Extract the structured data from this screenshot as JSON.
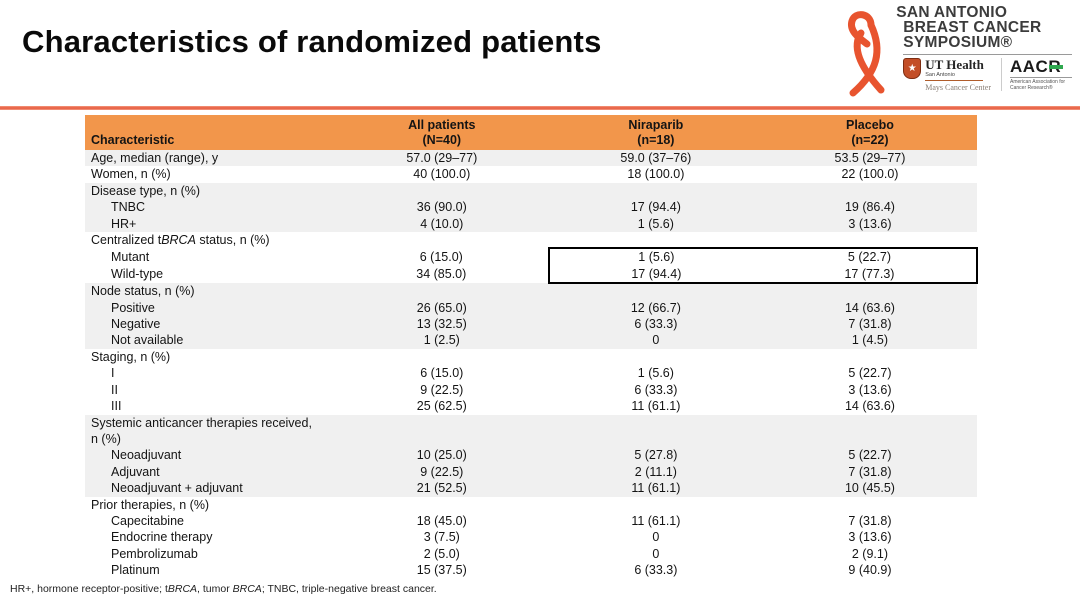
{
  "slide": {
    "title": "Characteristics of randomized patients"
  },
  "logo": {
    "symposium_line1": "SAN ANTONIO",
    "symposium_line2": "BREAST CANCER",
    "symposium_line3": "SYMPOSIUM®",
    "ut_health": {
      "name": "UT Health",
      "location": "San Antonio",
      "center": "Mays Cancer Center"
    },
    "aacr": {
      "acronym": "AACR",
      "subtitle": "American Association for Cancer Research®"
    }
  },
  "table": {
    "columns": [
      {
        "label": "Characteristic"
      },
      {
        "line1": "All patients",
        "line2": "(N=40)"
      },
      {
        "line1": "Niraparib",
        "line2": "(n=18)"
      },
      {
        "line1": "Placebo",
        "line2": "(n=22)"
      }
    ],
    "rows": [
      {
        "label": "Age, median (range), y",
        "indent": 0,
        "band": "gray",
        "values": [
          "57.0 (29–77)",
          "59.0 (37–76)",
          "53.5 (29–77)"
        ]
      },
      {
        "label": "Women, n (%)",
        "indent": 0,
        "band": "white",
        "values": [
          "40 (100.0)",
          "18 (100.0)",
          "22 (100.0)"
        ]
      },
      {
        "label": "Disease type, n (%)",
        "indent": 0,
        "band": "gray",
        "values": [
          "",
          "",
          ""
        ]
      },
      {
        "label": "TNBC",
        "indent": 1,
        "band": "gray",
        "values": [
          "36 (90.0)",
          "17 (94.4)",
          "19 (86.4)"
        ]
      },
      {
        "label": "HR+",
        "indent": 1,
        "band": "gray",
        "values": [
          "4 (10.0)",
          "1 (5.6)",
          "3 (13.6)"
        ]
      },
      {
        "label_segments": [
          {
            "t": "Centralized t"
          },
          {
            "t": "BRCA",
            "i": true
          },
          {
            "t": " status, n (%)"
          }
        ],
        "indent": 0,
        "band": "white",
        "values": [
          "",
          "",
          ""
        ]
      },
      {
        "label": "Mutant",
        "indent": 1,
        "band": "white",
        "box": "top",
        "values": [
          "6 (15.0)",
          "1 (5.6)",
          "5 (22.7)"
        ]
      },
      {
        "label": "Wild-type",
        "indent": 1,
        "band": "white",
        "box": "bottom",
        "values": [
          "34 (85.0)",
          "17 (94.4)",
          "17 (77.3)"
        ]
      },
      {
        "label": "Node status, n (%)",
        "indent": 0,
        "band": "gray",
        "values": [
          "",
          "",
          ""
        ]
      },
      {
        "label": "Positive",
        "indent": 1,
        "band": "gray",
        "values": [
          "26 (65.0)",
          "12 (66.7)",
          "14 (63.6)"
        ]
      },
      {
        "label": "Negative",
        "indent": 1,
        "band": "gray",
        "values": [
          "13 (32.5)",
          "6 (33.3)",
          "7 (31.8)"
        ]
      },
      {
        "label": "Not available",
        "indent": 1,
        "band": "gray",
        "values": [
          "1 (2.5)",
          "0",
          "1 (4.5)"
        ]
      },
      {
        "label": "Staging, n (%)",
        "indent": 0,
        "band": "white",
        "values": [
          "",
          "",
          ""
        ]
      },
      {
        "label": "I",
        "indent": 1,
        "band": "white",
        "values": [
          "6 (15.0)",
          "1 (5.6)",
          "5 (22.7)"
        ]
      },
      {
        "label": "II",
        "indent": 1,
        "band": "white",
        "values": [
          "9 (22.5)",
          "6 (33.3)",
          "3 (13.6)"
        ]
      },
      {
        "label": "III",
        "indent": 1,
        "band": "white",
        "values": [
          "25 (62.5)",
          "11 (61.1)",
          "14 (63.6)"
        ]
      },
      {
        "label": "Systemic anticancer therapies received,\nn (%)",
        "indent": 0,
        "band": "gray",
        "values": [
          "",
          "",
          ""
        ]
      },
      {
        "label": "Neoadjuvant",
        "indent": 1,
        "band": "gray",
        "values": [
          "10 (25.0)",
          "5 (27.8)",
          "5 (22.7)"
        ]
      },
      {
        "label": "Adjuvant",
        "indent": 1,
        "band": "gray",
        "values": [
          "9 (22.5)",
          "2 (11.1)",
          "7 (31.8)"
        ]
      },
      {
        "label": "Neoadjuvant + adjuvant",
        "indent": 1,
        "band": "gray",
        "values": [
          "21 (52.5)",
          "11 (61.1)",
          "10 (45.5)"
        ]
      },
      {
        "label": "Prior therapies, n (%)",
        "indent": 0,
        "band": "white",
        "values": [
          "",
          "",
          ""
        ]
      },
      {
        "label": "Capecitabine",
        "indent": 1,
        "band": "white",
        "values": [
          "18 (45.0)",
          "11 (61.1)",
          "7 (31.8)"
        ]
      },
      {
        "label": "Endocrine therapy",
        "indent": 1,
        "band": "white",
        "values": [
          "3 (7.5)",
          "0",
          "3 (13.6)"
        ]
      },
      {
        "label": "Pembrolizumab",
        "indent": 1,
        "band": "white",
        "values": [
          "2 (5.0)",
          "0",
          "2 (9.1)"
        ]
      },
      {
        "label": "Platinum",
        "indent": 1,
        "band": "white",
        "values": [
          "15 (37.5)",
          "6 (33.3)",
          "9 (40.9)"
        ]
      }
    ]
  },
  "footnote": {
    "segments": [
      {
        "t": "HR+, hormone receptor-positive; t"
      },
      {
        "t": "BRCA",
        "i": true
      },
      {
        "t": ", tumor "
      },
      {
        "t": "BRCA",
        "i": true
      },
      {
        "t": "; TNBC, triple-negative breast cancer."
      }
    ]
  },
  "colors": {
    "header_orange": "#F2964B",
    "band_gray": "#F0F0F0",
    "divider_salmon": "#E9674B",
    "ribbon_orange": "#E8542F",
    "aacr_green": "#2FA84F",
    "shield_red": "#C34E27",
    "highlight_border": "#000000"
  }
}
